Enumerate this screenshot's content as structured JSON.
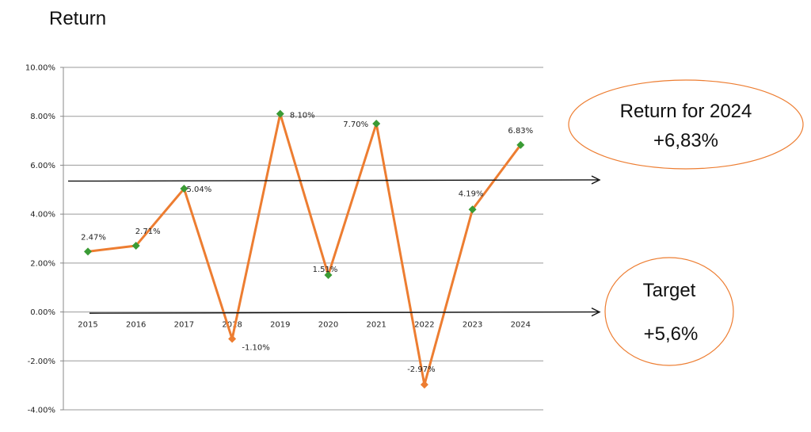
{
  "page": {
    "title": "Return"
  },
  "chart_data": {
    "type": "line",
    "title": "Return",
    "xlabel": "",
    "ylabel": "",
    "categories": [
      "2015",
      "2016",
      "2017",
      "2018",
      "2019",
      "2020",
      "2021",
      "2022",
      "2023",
      "2024"
    ],
    "values": [
      2.47,
      2.71,
      5.04,
      -1.1,
      8.1,
      1.51,
      7.7,
      -2.97,
      4.19,
      6.83
    ],
    "data_labels": [
      "2.47%",
      "2.71%",
      "5.04%",
      "-1.10%",
      "8.10%",
      "1.51%",
      "7.70%",
      "-2.97%",
      "4.19%",
      "6.83%"
    ],
    "ylim": [
      -4,
      10
    ],
    "y_ticks": [
      10,
      8,
      6,
      4,
      2,
      0,
      -2,
      -4
    ],
    "y_tick_labels": [
      "10.00%",
      "8.00%",
      "6.00%",
      "4.00%",
      "2.00%",
      "0.00%",
      "-2.00%",
      "-4.00%"
    ],
    "grid": true,
    "line_color": "#ED7D31",
    "marker_color": "#3A9B35",
    "arrows": [
      {
        "name": "return-arrow",
        "y_start": 5.35,
        "y_end": 5.4
      },
      {
        "name": "target-arrow",
        "y_start": -0.05,
        "y_end": 0.0
      }
    ]
  },
  "callouts": {
    "return": {
      "line1": "Return for 2024",
      "line2": "+6,83%"
    },
    "target": {
      "line1": "Target",
      "line2": "+5,6%"
    },
    "border_color": "#ED7D31"
  }
}
